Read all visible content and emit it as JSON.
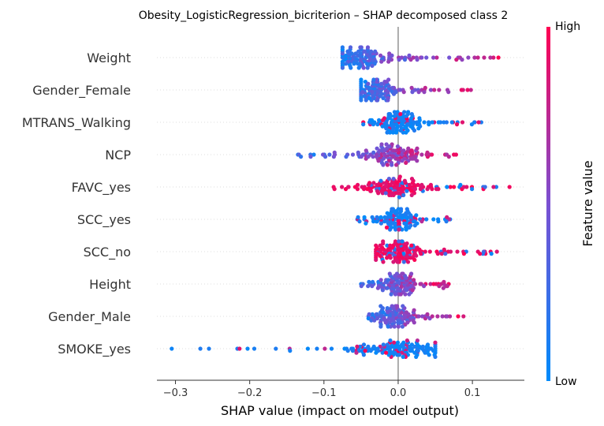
{
  "chart_data": {
    "type": "scatter",
    "subtype": "shap-beeswarm",
    "title": "Obesity_LogisticRegression_bicriterion – SHAP decomposed class 2",
    "xlabel": "SHAP value (impact on model output)",
    "xlim": [
      -0.325,
      0.17
    ],
    "xticks": [
      -0.3,
      -0.2,
      -0.1,
      0.0,
      0.1
    ],
    "xtick_labels": [
      "−0.3",
      "−0.2",
      "−0.1",
      "0.0",
      "0.1"
    ],
    "zero_line": true,
    "colorbar": {
      "label": "Feature value",
      "high_label": "High",
      "low_label": "Low",
      "low_color": "#008bfb",
      "high_color": "#ff0052"
    },
    "features": [
      {
        "name": "Weight",
        "min": -0.075,
        "max": 0.135,
        "center": -0.05,
        "dominant": "mixed"
      },
      {
        "name": "Gender_Female",
        "min": -0.05,
        "max": 0.098,
        "center": -0.03,
        "dominant": "mixed"
      },
      {
        "name": "MTRANS_Walking",
        "min": -0.047,
        "max": 0.112,
        "center": 0.0,
        "dominant": "low"
      },
      {
        "name": "NCP",
        "min": -0.135,
        "max": 0.078,
        "center": -0.01,
        "dominant": "mixed"
      },
      {
        "name": "FAVC_yes",
        "min": -0.087,
        "max": 0.15,
        "center": 0.0,
        "dominant": "high"
      },
      {
        "name": "SCC_yes",
        "min": -0.055,
        "max": 0.07,
        "center": 0.0,
        "dominant": "low"
      },
      {
        "name": "SCC_no",
        "min": -0.03,
        "max": 0.133,
        "center": 0.0,
        "dominant": "high"
      },
      {
        "name": "Height",
        "min": -0.05,
        "max": 0.068,
        "center": 0.0,
        "dominant": "mixed"
      },
      {
        "name": "Gender_Male",
        "min": -0.04,
        "max": 0.088,
        "center": -0.01,
        "dominant": "mixed"
      },
      {
        "name": "SMOKE_yes",
        "min": -0.305,
        "max": 0.05,
        "center": 0.0,
        "dominant": "low"
      }
    ]
  }
}
